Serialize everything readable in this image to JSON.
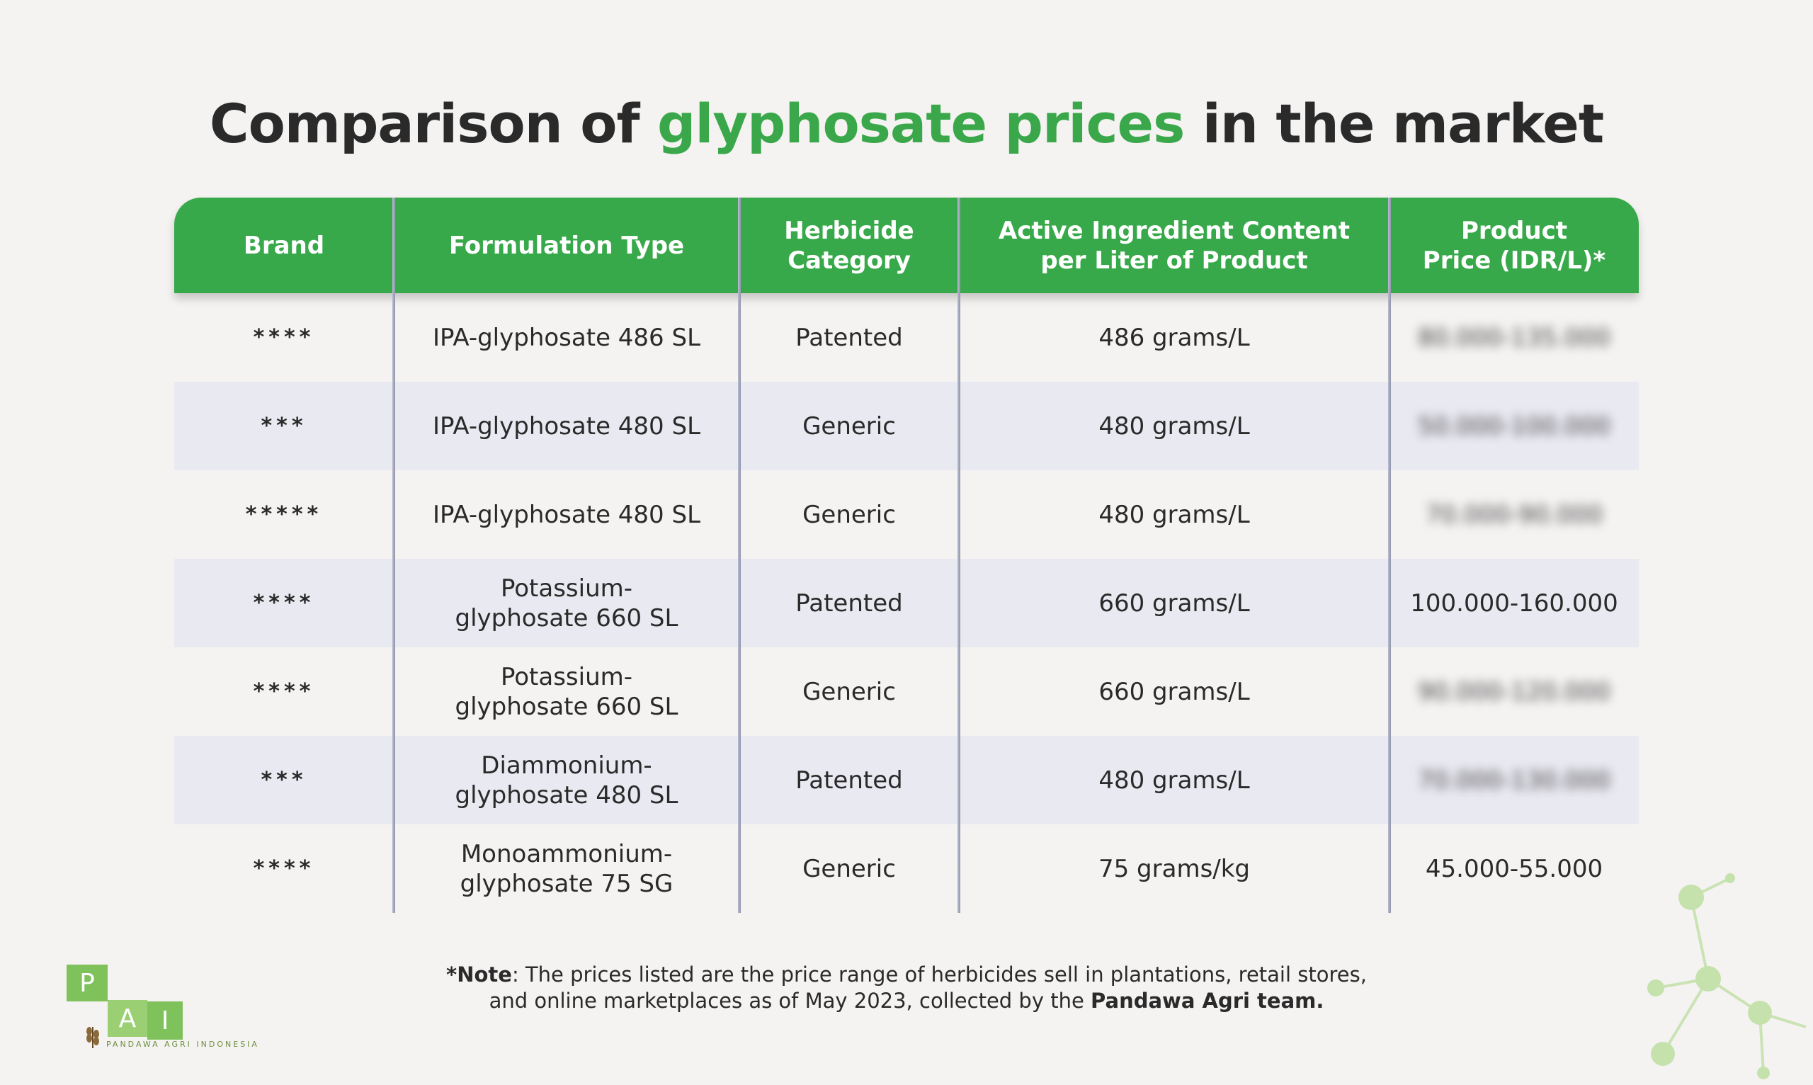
{
  "title": {
    "part1": "Comparison of ",
    "highlight": "glyphosate prices",
    "part2": " in the market"
  },
  "table": {
    "headers": [
      {
        "key": "brand",
        "label": "Brand"
      },
      {
        "key": "formulation",
        "label": "Formulation Type"
      },
      {
        "key": "category",
        "label": "Herbicide\nCategory"
      },
      {
        "key": "content",
        "label": "Active Ingredient Content\nper Liter of Product"
      },
      {
        "key": "price",
        "label": "Product\nPrice (IDR/L)*"
      }
    ],
    "rows": [
      {
        "brand": "****",
        "formulation": "IPA-glyphosate 486 SL",
        "category": "Patented",
        "content": "486 grams/L",
        "price": "80.000-135.000",
        "price_blurred": true
      },
      {
        "brand": "***",
        "formulation": "IPA-glyphosate 480 SL",
        "category": "Generic",
        "content": "480 grams/L",
        "price": "50.000-100.000",
        "price_blurred": true
      },
      {
        "brand": "*****",
        "formulation": "IPA-glyphosate 480 SL",
        "category": "Generic",
        "content": "480 grams/L",
        "price": "70.000-90.000",
        "price_blurred": true
      },
      {
        "brand": "****",
        "formulation": "Potassium-\nglyphosate 660 SL",
        "category": "Patented",
        "content": "660 grams/L",
        "price": "100.000-160.000",
        "price_blurred": false
      },
      {
        "brand": "****",
        "formulation": "Potassium-\nglyphosate 660 SL",
        "category": "Generic",
        "content": "660 grams/L",
        "price": "90.000-120.000",
        "price_blurred": true
      },
      {
        "brand": "***",
        "formulation": "Diammonium-\nglyphosate 480 SL",
        "category": "Patented",
        "content": "480 grams/L",
        "price": "70.000-130.000",
        "price_blurred": true
      },
      {
        "brand": "****",
        "formulation": "Monoammonium-\nglyphosate 75 SG",
        "category": "Generic",
        "content": "75 grams/kg",
        "price": "45.000-55.000",
        "price_blurred": false
      }
    ]
  },
  "note": {
    "label": "*Note",
    "text1": ": The prices listed are the price range of herbicides sell in plantations, retail stores,",
    "text2": "and online marketplaces as of May 2023, collected by the ",
    "team": "Pandawa Agri team."
  },
  "logo": {
    "letters": [
      "P",
      "A",
      "I"
    ],
    "tagline": "PANDAWA AGRI INDONESIA",
    "color": "#7fc15a",
    "icon": "wheat-icon"
  },
  "colors": {
    "accent": "#38a94a",
    "row_alt": "#e9e9f1",
    "divider": "#9a9fb6"
  },
  "decoration": {
    "icon": "molecule-icon"
  }
}
